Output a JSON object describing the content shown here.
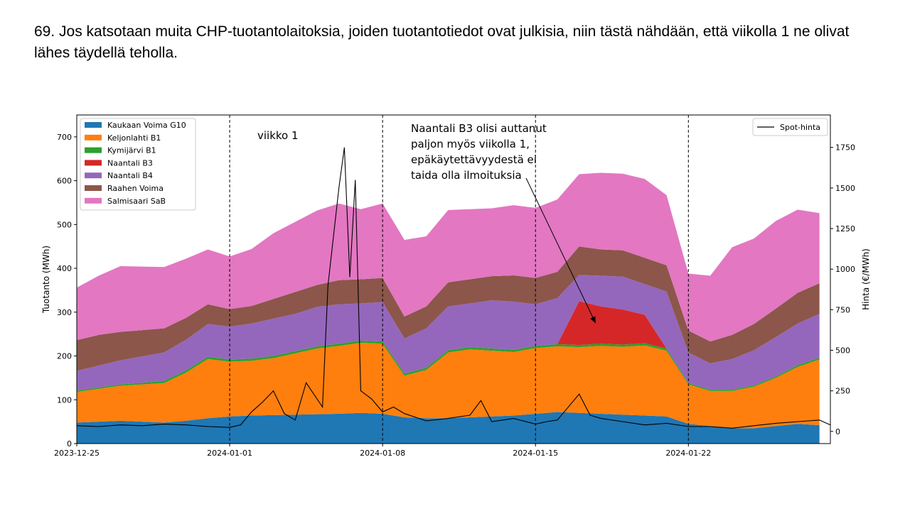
{
  "slide": {
    "title": "69. Jos katsotaan muita CHP-tuotantolaitoksia, joiden tuotantotiedot ovat julkisia, niin tästä nähdään, että viikolla 1 ne olivat lähes täydellä teholla."
  },
  "chart_data": {
    "type": "area",
    "title": "",
    "ylabel": "Tuotanto (MWh)",
    "ylabel_right": "Hinta (€/MWh)",
    "ylim": [
      0,
      750
    ],
    "ylim_right": [
      -75,
      1950
    ],
    "yticks": [
      "0",
      "100",
      "200",
      "300",
      "400",
      "500",
      "600",
      "700"
    ],
    "yticks_right": [
      "0",
      "250",
      "500",
      "750",
      "1000",
      "1250",
      "1500",
      "1750"
    ],
    "xlim": [
      "2023-12-25",
      "2024-01-28 12:00"
    ],
    "xticks": [
      "2023-12-25",
      "2024-01-01",
      "2024-01-08",
      "2024-01-15",
      "2024-01-22"
    ],
    "vlines": [
      "2024-01-01",
      "2024-01-08",
      "2024-01-15",
      "2024-01-22"
    ],
    "grid": false,
    "legend_left": {
      "placement": "upper-left",
      "entries": [
        "Kaukaan Voima G10",
        "Keljonlahti B1",
        "Kymijärvi B1",
        "Naantali B3",
        "Naantali B4",
        "Raahen Voima",
        "Salmisaari SaB"
      ]
    },
    "legend_right": {
      "placement": "upper-right",
      "entries": [
        "Spot-hinta"
      ]
    },
    "annotations": [
      {
        "text": "viikko 1"
      },
      {
        "lines": [
          "Naantali B3 olisi auttanut",
          "paljon myös viikolla 1,",
          "epäkäytettävyydestä ei",
          "taida olla ilmoituksia"
        ],
        "arrow_to": {
          "x": "2024-01-17 18:00",
          "y": 275
        }
      }
    ],
    "colors": {
      "Kaukaan Voima G10": "#1f77b4",
      "Keljonlahti B1": "#ff7f0e",
      "Kymijärvi B1": "#2ca02c",
      "Naantali B3": "#d62728",
      "Naantali B4": "#9467bd",
      "Raahen Voima": "#8c564b",
      "Salmisaari SaB": "#e377c2",
      "Spot-hinta": "#000000"
    },
    "x_daily": [
      "2023-12-25",
      "2023-12-26",
      "2023-12-27",
      "2023-12-28",
      "2023-12-29",
      "2023-12-30",
      "2023-12-31",
      "2024-01-01",
      "2024-01-02",
      "2024-01-03",
      "2024-01-04",
      "2024-01-05",
      "2024-01-06",
      "2024-01-07",
      "2024-01-08",
      "2024-01-09",
      "2024-01-10",
      "2024-01-11",
      "2024-01-12",
      "2024-01-13",
      "2024-01-14",
      "2024-01-15",
      "2024-01-16",
      "2024-01-17",
      "2024-01-18",
      "2024-01-19",
      "2024-01-20",
      "2024-01-21",
      "2024-01-22",
      "2024-01-23",
      "2024-01-24",
      "2024-01-25",
      "2024-01-26",
      "2024-01-27",
      "2024-01-28"
    ],
    "series": [
      {
        "name": "Kaukaan Voima G10",
        "values": [
          48,
          50,
          52,
          50,
          48,
          52,
          58,
          62,
          64,
          65,
          66,
          67,
          68,
          70,
          68,
          60,
          58,
          58,
          60,
          62,
          64,
          68,
          72,
          70,
          68,
          66,
          64,
          62,
          45,
          40,
          35,
          35,
          40,
          45,
          42
        ]
      },
      {
        "name": "Keljonlahti B1",
        "values": [
          70,
          75,
          80,
          85,
          90,
          110,
          135,
          125,
          125,
          130,
          140,
          150,
          155,
          160,
          160,
          95,
          110,
          150,
          155,
          150,
          145,
          150,
          150,
          150,
          155,
          155,
          160,
          150,
          90,
          80,
          85,
          95,
          110,
          130,
          150
        ]
      },
      {
        "name": "Kymijärvi B1",
        "values": [
          3,
          3,
          3,
          4,
          5,
          5,
          5,
          5,
          5,
          5,
          5,
          5,
          5,
          5,
          5,
          5,
          5,
          5,
          5,
          5,
          5,
          5,
          5,
          5,
          5,
          5,
          5,
          5,
          3,
          3,
          3,
          3,
          3,
          4,
          4
        ]
      },
      {
        "name": "Naantali B3",
        "values": [
          0,
          0,
          0,
          0,
          0,
          0,
          0,
          0,
          0,
          0,
          0,
          0,
          0,
          0,
          0,
          0,
          0,
          0,
          0,
          0,
          0,
          0,
          0,
          100,
          85,
          80,
          65,
          0,
          0,
          0,
          0,
          0,
          0,
          0,
          0
        ]
      },
      {
        "name": "Naantali B4",
        "values": [
          45,
          50,
          55,
          60,
          65,
          70,
          75,
          75,
          80,
          85,
          85,
          90,
          90,
          85,
          90,
          80,
          90,
          100,
          100,
          110,
          110,
          95,
          105,
          60,
          70,
          75,
          70,
          130,
          70,
          60,
          70,
          80,
          90,
          95,
          100
        ]
      },
      {
        "name": "Raahen Voima",
        "values": [
          70,
          70,
          65,
          60,
          55,
          50,
          45,
          40,
          40,
          45,
          50,
          50,
          55,
          55,
          55,
          50,
          50,
          55,
          55,
          55,
          60,
          60,
          60,
          65,
          60,
          60,
          60,
          60,
          50,
          50,
          55,
          60,
          65,
          70,
          70
        ]
      },
      {
        "name": "Salmisaari SaB",
        "values": [
          120,
          135,
          150,
          145,
          140,
          135,
          125,
          120,
          130,
          150,
          160,
          170,
          175,
          160,
          170,
          175,
          160,
          165,
          160,
          155,
          160,
          160,
          165,
          165,
          175,
          175,
          180,
          160,
          130,
          150,
          200,
          195,
          200,
          190,
          160
        ]
      }
    ],
    "spot_price": {
      "name": "Spot-hinta",
      "x": [
        "2023-12-25",
        "2023-12-26",
        "2023-12-27",
        "2023-12-28",
        "2023-12-29",
        "2023-12-30",
        "2023-12-31",
        "2024-01-01",
        "2024-01-01 12:00",
        "2024-01-02",
        "2024-01-02 12:00",
        "2024-01-03",
        "2024-01-03 12:00",
        "2024-01-04",
        "2024-01-04 12:00",
        "2024-01-05",
        "2024-01-05 06:00",
        "2024-01-05 12:00",
        "2024-01-05 18:00",
        "2024-01-06",
        "2024-01-06 06:00",
        "2024-01-06 12:00",
        "2024-01-06 18:00",
        "2024-01-07",
        "2024-01-07 12:00",
        "2024-01-08",
        "2024-01-08 12:00",
        "2024-01-09",
        "2024-01-10",
        "2024-01-11",
        "2024-01-12",
        "2024-01-12 12:00",
        "2024-01-13",
        "2024-01-14",
        "2024-01-15",
        "2024-01-15 12:00",
        "2024-01-16",
        "2024-01-16 12:00",
        "2024-01-17",
        "2024-01-17 12:00",
        "2024-01-18",
        "2024-01-19",
        "2024-01-20",
        "2024-01-21",
        "2024-01-22",
        "2024-01-23",
        "2024-01-24",
        "2024-01-25",
        "2024-01-26",
        "2024-01-27",
        "2024-01-28",
        "2024-01-28 12:00"
      ],
      "values": [
        35,
        30,
        40,
        35,
        45,
        40,
        30,
        25,
        40,
        120,
        180,
        250,
        110,
        70,
        300,
        200,
        150,
        900,
        1200,
        1500,
        1750,
        950,
        1550,
        250,
        200,
        120,
        150,
        110,
        65,
        80,
        100,
        190,
        60,
        80,
        45,
        60,
        70,
        150,
        230,
        100,
        80,
        60,
        40,
        50,
        30,
        30,
        20,
        35,
        50,
        60,
        70,
        40
      ]
    }
  }
}
